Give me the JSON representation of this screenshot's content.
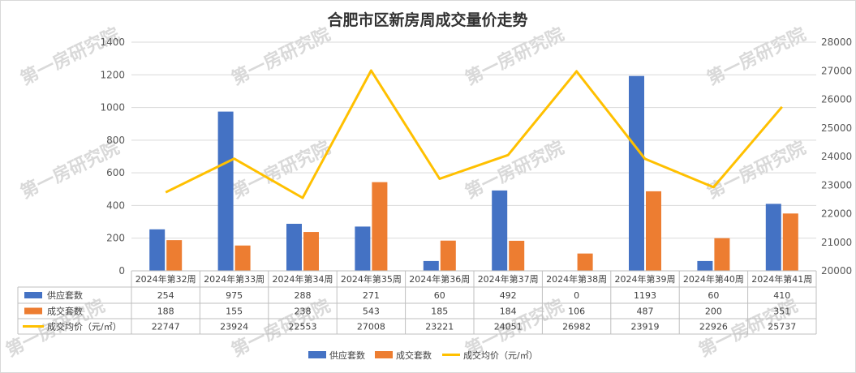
{
  "chart_data": {
    "type": "bar",
    "title": "合肥市区新房周成交量价走势",
    "categories": [
      "2024年第32周",
      "2024年第33周",
      "2024年第34周",
      "2024年第35周",
      "2024年第36周",
      "2024年第37周",
      "2024年第38周",
      "2024年第39周",
      "2024年第40周",
      "2024年第41周"
    ],
    "series": [
      {
        "name": "供应套数",
        "type": "bar",
        "axis": "left",
        "color": "#4472C4",
        "values": [
          254,
          975,
          288,
          271,
          60,
          492,
          0,
          1193,
          60,
          410
        ]
      },
      {
        "name": "成交套数",
        "type": "bar",
        "axis": "left",
        "color": "#ED7D31",
        "values": [
          188,
          155,
          238,
          543,
          185,
          184,
          106,
          487,
          200,
          351
        ]
      },
      {
        "name": "成交均价（元/㎡）",
        "type": "line",
        "axis": "right",
        "color": "#FFC000",
        "values": [
          22747,
          23924,
          22553,
          27008,
          23221,
          24051,
          26982,
          23919,
          22926,
          25737
        ]
      }
    ],
    "left_axis": {
      "min": 0,
      "max": 1400,
      "step": 200
    },
    "right_axis": {
      "min": 20000,
      "max": 28000,
      "step": 1000
    },
    "legend_position": "bottom",
    "data_table": true,
    "grid": true
  },
  "legend": {
    "supply": "供应套数",
    "deals": "成交套数",
    "price": "成交均价（元/㎡）"
  },
  "watermark": "第一房研究院"
}
